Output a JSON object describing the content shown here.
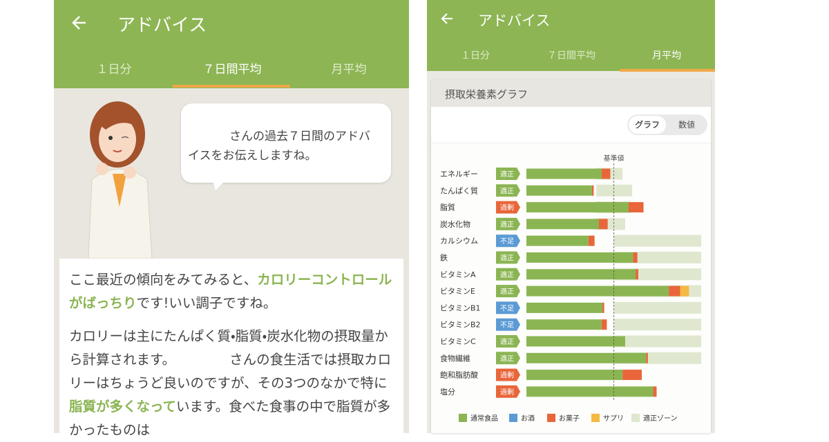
{
  "left": {
    "title": "アドバイス",
    "tabs": [
      "１日分",
      "７日間平均",
      "月平均"
    ],
    "active_tab": 1,
    "bubble": "さんの過去７日間のアドバイスをお伝えしますね。",
    "p1": [
      "ここ最近の傾向をみてみると、",
      "カロリーコントロールがばっちり",
      "です!いい調子ですね。"
    ],
    "p2": [
      "カロリーは主にたんぱく質・脂質・炭水化物の摂取量から計算されます。",
      "さんの食生活では摂取カロリーはちょうど良いのですが、その3つのなかで特に",
      "脂質が多くなって",
      "います。食べた食事の中で脂質が多かったものは"
    ]
  },
  "right": {
    "title": "アドバイス",
    "tabs": [
      "１日分",
      "７日間平均",
      "月平均"
    ],
    "active_tab": 2,
    "card_title": "摂取栄養素グラフ",
    "toggle": [
      "グラフ",
      "数値"
    ],
    "reference_label": "基準値",
    "chart": {
      "type": "bar",
      "orientation": "horizontal",
      "stacked": true,
      "xlim": [
        0,
        200
      ],
      "reference": 100,
      "categories": [
        "エネルギー",
        "たんぱく質",
        "脂質",
        "炭水化物",
        "カルシウム",
        "鉄",
        "ビタミンA",
        "ビタミンE",
        "ビタミンB1",
        "ビタミンB2",
        "ビタミンC",
        "食物繊維",
        "飽和脂肪酸",
        "塩分"
      ],
      "status": [
        "適正",
        "適正",
        "過剰",
        "適正",
        "不足",
        "適正",
        "適正",
        "適正",
        "不足",
        "不足",
        "適正",
        "適正",
        "過剰",
        "過剰"
      ],
      "status_colors": {
        "適正": "#8bb553",
        "過剰": "#e8663a",
        "不足": "#5b9bd5"
      },
      "series": [
        {
          "name": "通常食品",
          "color": "#8bb553",
          "values": [
            86,
            75,
            117,
            83,
            71,
            122,
            125,
            163,
            87,
            86,
            113,
            137,
            110,
            145
          ]
        },
        {
          "name": "お酒",
          "color": "#5b9bd5",
          "values": [
            0,
            0,
            0,
            0,
            0,
            0,
            0,
            0,
            0,
            0,
            0,
            0,
            0,
            0
          ]
        },
        {
          "name": "お菓子",
          "color": "#e8663a",
          "values": [
            10,
            2,
            17,
            10,
            7,
            5,
            3,
            13,
            2,
            6,
            0,
            2,
            22,
            4
          ]
        },
        {
          "name": "サプリ",
          "color": "#f5b942",
          "values": [
            0,
            0,
            0,
            0,
            0,
            0,
            0,
            10,
            0,
            0,
            0,
            0,
            0,
            0
          ]
        }
      ],
      "zone": {
        "name": "適正ゾーン",
        "color": "#dfe8cf",
        "ranges": [
          [
            79,
            110
          ],
          [
            80,
            121
          ],
          [
            79,
            119
          ],
          [
            79,
            113
          ],
          [
            100,
            200
          ],
          [
            100,
            200
          ],
          [
            100,
            200
          ],
          [
            100,
            200
          ],
          [
            100,
            200
          ],
          [
            100,
            200
          ],
          [
            100,
            200
          ],
          [
            100,
            200
          ],
          null,
          null
        ]
      }
    }
  }
}
